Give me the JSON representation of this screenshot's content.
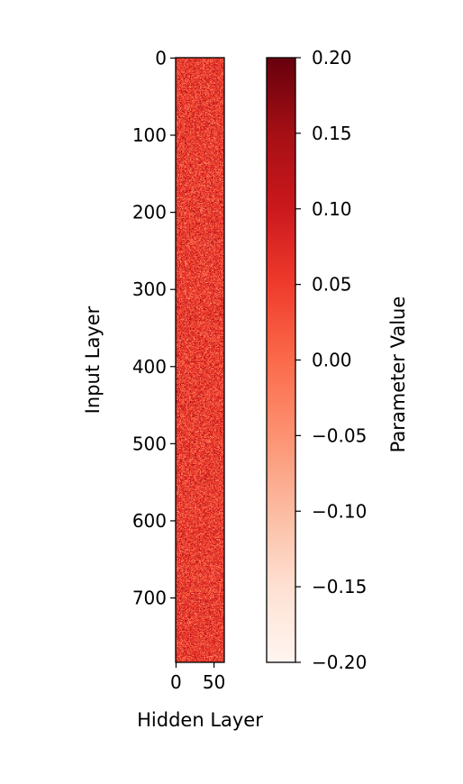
{
  "chart_data": {
    "type": "heatmap",
    "title": "",
    "xlabel": "Hidden Layer",
    "ylabel": "Input Layer",
    "rows": 784,
    "cols": 64,
    "x_ticks": [
      0,
      50
    ],
    "y_ticks": [
      0,
      100,
      200,
      300,
      400,
      500,
      600,
      700
    ],
    "colormap": "Reds",
    "value_range": [
      -0.2,
      0.2
    ],
    "value_distribution": "random noise around 0.05",
    "colorbar": {
      "label": "Parameter Value",
      "ticks": [
        0.2,
        0.15,
        0.1,
        0.05,
        0.0,
        -0.05,
        -0.1,
        -0.15,
        -0.2
      ],
      "tick_labels": [
        "0.20",
        "0.15",
        "0.10",
        "0.05",
        "0.00",
        "−0.05",
        "−0.10",
        "−0.15",
        "−0.20"
      ],
      "color_low": "#fff5f0",
      "color_high": "#67000d"
    }
  }
}
